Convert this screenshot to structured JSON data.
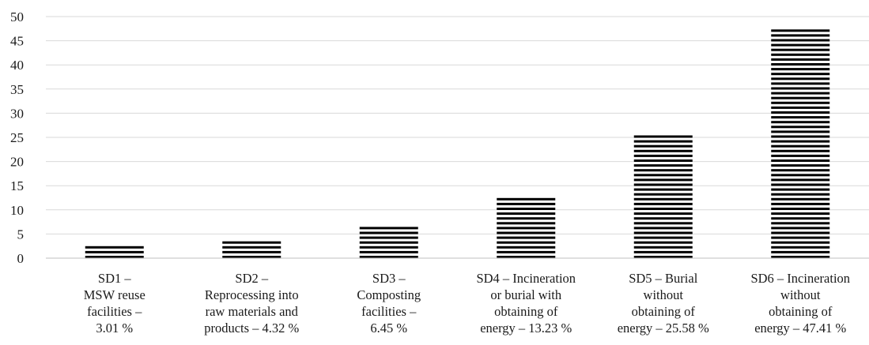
{
  "chart_data": {
    "type": "bar",
    "title": "",
    "xlabel": "",
    "ylabel": "",
    "ylim": [
      0,
      50
    ],
    "yticks": [
      0,
      5,
      10,
      15,
      20,
      25,
      30,
      35,
      40,
      45,
      50
    ],
    "grid": true,
    "legend": "none",
    "bar_fill": "horizontal-stripes",
    "colors": {
      "bar_stripe": "#000000",
      "gridline": "#d9d9d9",
      "axis": "#bfbfbf",
      "text": "#1a1a1a"
    },
    "categories": [
      "SD1 –\nMSW reuse\nfacilities –\n3.01 %",
      "SD2 –\nReprocessing into\nraw materials and\nproducts – 4.32 %",
      "SD3 –\nComposting\nfacilities –\n6.45 %",
      "SD4 – Incineration\nor burial with\nobtaining of\nenergy – 13.23 %",
      "SD5 – Burial\nwithout\nobtaining of\nenergy – 25.58 %",
      "SD6 – Incineration\nwithout\nobtaining of\nenergy – 47.41 %"
    ],
    "values": [
      3.01,
      4.32,
      6.45,
      13.23,
      25.58,
      47.41
    ]
  }
}
